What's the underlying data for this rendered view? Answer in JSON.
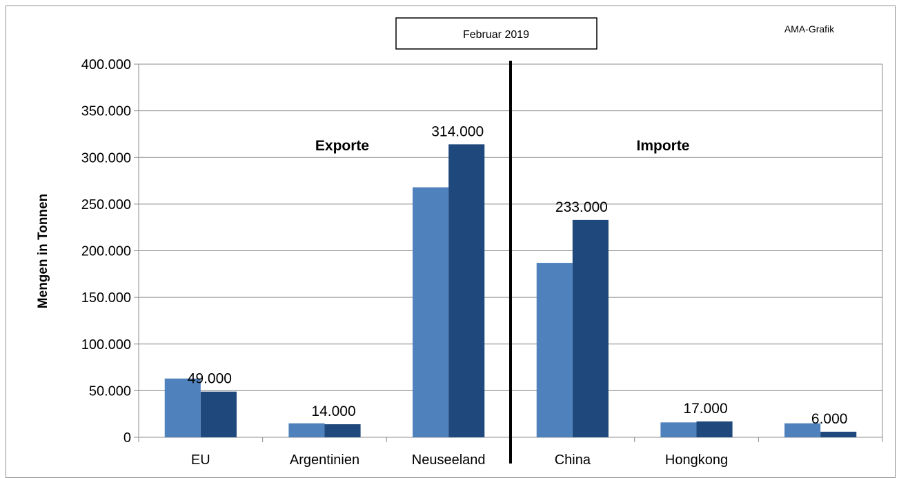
{
  "chart_data": {
    "type": "bar",
    "title": "Februar 2019",
    "credit": "AMA-Grafik",
    "ylabel": "Mengen in Tonnen",
    "xlabel": "",
    "ylim": [
      0,
      400000
    ],
    "yticks": [
      "0",
      "50.000",
      "100.000",
      "150.000",
      "200.000",
      "250.000",
      "300.000",
      "350.000",
      "400.000"
    ],
    "categories": [
      "EU",
      "Argentinien",
      "Neuseeland",
      "China",
      "Hongkong",
      ""
    ],
    "series": [
      {
        "values": [
          63000,
          15000,
          268000,
          187000,
          16000,
          15000
        ],
        "color": "#4f81bd"
      },
      {
        "values": [
          49000,
          14000,
          314000,
          233000,
          17000,
          6000
        ],
        "color": "#1f497d"
      }
    ],
    "data_labels": [
      "49.000",
      "14.000",
      "314.000",
      "233.000",
      "17.000",
      "6.000"
    ],
    "annotations": [
      "Exporte",
      "Importe"
    ],
    "grid": true
  }
}
